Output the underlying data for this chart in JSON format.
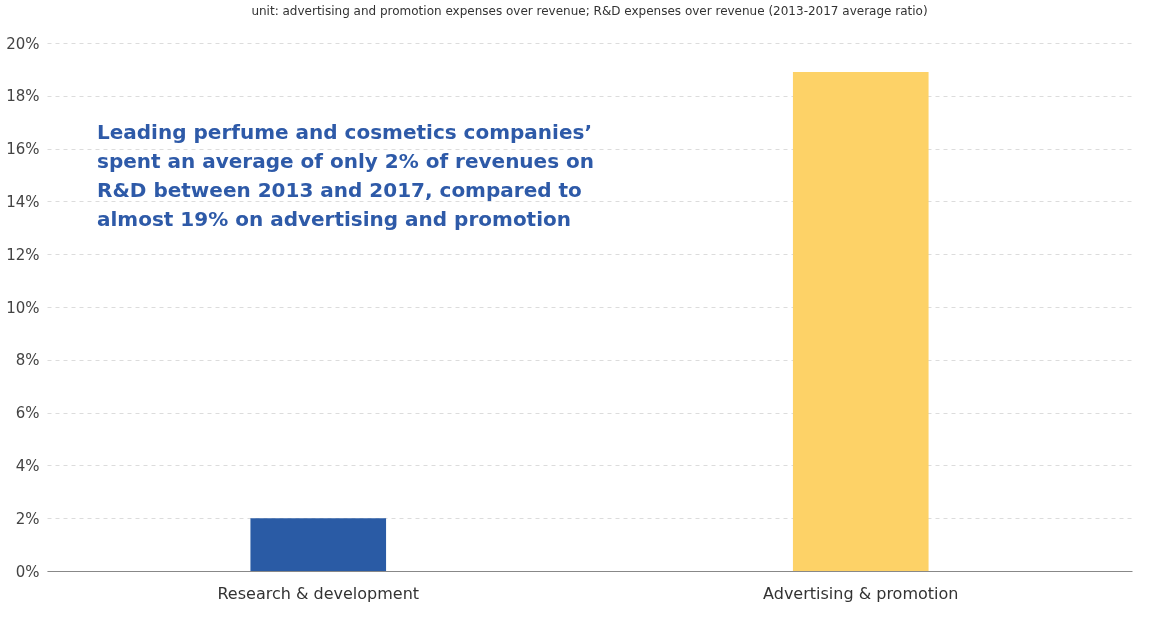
{
  "chart_data": {
    "type": "bar",
    "subtitle": "unit: advertising and promotion expenses over revenue; R&D expenses over revenue (2013-2017 average ratio)",
    "categories": [
      "Research & development",
      "Advertising & promotion"
    ],
    "values": [
      2,
      18.9
    ],
    "colors": [
      "#2a5ba5",
      "#fdd267"
    ],
    "ylim": [
      0,
      20
    ],
    "yticks": [
      {
        "value": 0,
        "label": "0%"
      },
      {
        "value": 2,
        "label": "2%"
      },
      {
        "value": 4,
        "label": "4%"
      },
      {
        "value": 6,
        "label": "6%"
      },
      {
        "value": 8,
        "label": "8%"
      },
      {
        "value": 10,
        "label": "10%"
      },
      {
        "value": 12,
        "label": "12%"
      },
      {
        "value": 14,
        "label": "14%"
      },
      {
        "value": 16,
        "label": "16%"
      },
      {
        "value": 18,
        "label": "18%"
      },
      {
        "value": 20,
        "label": "20%"
      }
    ],
    "grid": "y",
    "annotations": [
      "Leading perfume and cosmetics companies’ spent an average of only 2% of revenues on R&D between 2013 and 2017, compared to almost 19% on advertising and promotion"
    ]
  }
}
